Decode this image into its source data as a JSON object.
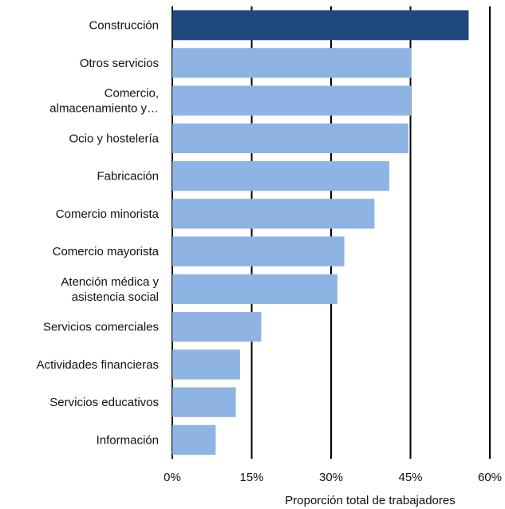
{
  "chart_data": {
    "type": "bar",
    "orientation": "horizontal",
    "categories": [
      "Construcción",
      "Otros servicios",
      "Comercio, almacenamiento y…",
      "Ocio y hostelería",
      "Fabricación",
      "Comercio minorista",
      "Comercio mayorista",
      "Atención médica y asistencia social",
      "Servicios comerciales",
      "Actividades financieras",
      "Servicios educativos",
      "Información"
    ],
    "category_label_lines": [
      [
        "Construcción"
      ],
      [
        "Otros servicios"
      ],
      [
        "Comercio,",
        "almacenamiento y…"
      ],
      [
        "Ocio y hostelería"
      ],
      [
        "Fabricación"
      ],
      [
        "Comercio minorista"
      ],
      [
        "Comercio mayorista"
      ],
      [
        "Atención médica y",
        "asistencia social"
      ],
      [
        "Servicios comerciales"
      ],
      [
        "Actividades financieras"
      ],
      [
        "Servicios educativos"
      ],
      [
        "Información"
      ]
    ],
    "values": [
      56,
      45.2,
      45.1,
      44.6,
      41,
      38.2,
      32.5,
      31.2,
      16.8,
      12.8,
      12,
      8.2
    ],
    "highlight_index": 0,
    "xlim": [
      0,
      60
    ],
    "xticks": [
      0,
      15,
      30,
      45,
      60
    ],
    "xtick_labels": [
      "0%",
      "15%",
      "30%",
      "45%",
      "60%"
    ],
    "xlabel": "Proporción total de trabajadores",
    "title": "",
    "grid": "vertical",
    "colors": {
      "highlight": "#1f497d",
      "bar": "#8eb4e3",
      "grid": "#000000"
    }
  }
}
